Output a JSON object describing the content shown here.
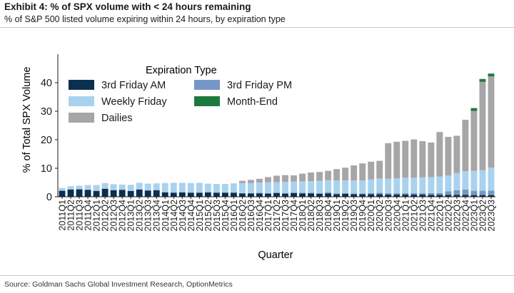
{
  "header": {
    "title": "Exhibit 4: % of SPX volume with < 24 hours remaining",
    "subtitle": "% of S&P 500 listed volume expiring within 24 hours, by expiration type"
  },
  "footer": {
    "source": "Source: Goldman Sachs Global Investment Research, OptionMetrics"
  },
  "chart_data": {
    "type": "bar",
    "stacked": true,
    "xlabel": "Quarter",
    "ylabel": "% of Total SPX Volume",
    "ylim": [
      0,
      50
    ],
    "yticks": [
      0,
      10,
      20,
      30,
      40
    ],
    "grid": false,
    "legend": {
      "title": "Expiration Type",
      "placement": "top-left"
    },
    "categories": [
      "2011Q1",
      "2011Q2",
      "2011Q3",
      "2011Q4",
      "2012Q1",
      "2012Q2",
      "2012Q3",
      "2012Q4",
      "2013Q1",
      "2013Q2",
      "2013Q3",
      "2013Q4",
      "2014Q1",
      "2014Q2",
      "2014Q3",
      "2014Q4",
      "2015Q1",
      "2015Q2",
      "2015Q3",
      "2015Q4",
      "2016Q1",
      "2016Q2",
      "2016Q3",
      "2016Q4",
      "2017Q1",
      "2017Q2",
      "2017Q3",
      "2017Q4",
      "2018Q1",
      "2018Q2",
      "2018Q3",
      "2018Q4",
      "2019Q1",
      "2019Q2",
      "2019Q3",
      "2019Q4",
      "2020Q1",
      "2020Q2",
      "2020Q3",
      "2020Q4",
      "2021Q1",
      "2021Q2",
      "2021Q3",
      "2021Q4",
      "2022Q1",
      "2022Q2",
      "2022Q3",
      "2022Q4",
      "2023Q1",
      "2023Q2",
      "2023Q3"
    ],
    "series": [
      {
        "name": "3rd Friday AM",
        "color": "#0b2f50",
        "values": [
          2.1,
          2.5,
          2.6,
          2.4,
          2.0,
          2.8,
          2.3,
          2.4,
          2.0,
          2.5,
          2.2,
          2.3,
          1.5,
          1.4,
          1.5,
          1.4,
          1.4,
          1.5,
          1.4,
          1.4,
          1.4,
          1.2,
          1.2,
          1.2,
          1.1,
          1.3,
          1.1,
          1.3,
          1.2,
          1.2,
          1.0,
          1.2,
          0.9,
          1.0,
          0.9,
          0.9,
          0.9,
          0.9,
          0.8,
          0.8,
          0.8,
          0.8,
          0.8,
          0.7,
          0.7,
          0.7,
          0.7,
          0.7,
          0.6,
          0.6,
          0.6
        ]
      },
      {
        "name": "3rd Friday PM",
        "color": "#7597c7",
        "values": [
          0.1,
          0.1,
          0.1,
          0.1,
          0.1,
          0.1,
          0.1,
          0.1,
          0.1,
          0.1,
          0.1,
          0.1,
          0.1,
          0.1,
          0.1,
          0.1,
          0.1,
          0.1,
          0.1,
          0.1,
          0.1,
          0.1,
          0.1,
          0.2,
          0.2,
          0.2,
          0.2,
          0.2,
          0.2,
          0.2,
          0.3,
          0.3,
          0.3,
          0.3,
          0.3,
          0.3,
          0.4,
          0.5,
          0.5,
          0.5,
          0.5,
          0.5,
          0.5,
          0.6,
          0.6,
          1.2,
          1.6,
          1.8,
          1.5,
          1.5,
          1.6
        ]
      },
      {
        "name": "Weekly Friday",
        "color": "#a9d2ef",
        "values": [
          0.9,
          1.1,
          1.2,
          1.6,
          2.0,
          1.9,
          2.0,
          1.8,
          2.1,
          2.3,
          2.3,
          2.3,
          3.2,
          3.4,
          3.3,
          3.3,
          3.4,
          3.0,
          3.0,
          3.0,
          3.2,
          3.5,
          3.5,
          3.6,
          3.8,
          3.6,
          3.9,
          3.8,
          4.0,
          4.1,
          4.3,
          4.3,
          4.5,
          4.4,
          4.5,
          4.5,
          4.8,
          5.0,
          5.0,
          5.2,
          5.4,
          5.4,
          5.5,
          5.6,
          5.8,
          5.6,
          6.0,
          6.5,
          7.0,
          7.2,
          8.0
        ]
      },
      {
        "name": "Dailies",
        "color": "#a6a6a6",
        "values": [
          0,
          0,
          0,
          0,
          0,
          0,
          0,
          0,
          0,
          0,
          0,
          0,
          0,
          0,
          0,
          0,
          0,
          0,
          0,
          0,
          0,
          0.8,
          1.1,
          1.3,
          1.8,
          2.3,
          2.4,
          2.2,
          2.7,
          3.0,
          3.1,
          3.3,
          4.0,
          4.5,
          5.3,
          6.0,
          6.2,
          6.2,
          12.5,
          12.8,
          12.9,
          13.4,
          12.7,
          12.1,
          15.6,
          13.5,
          13.1,
          18.0,
          21.0,
          31.0,
          32.0
        ]
      },
      {
        "name": "Month-End",
        "color": "#1d7a3e",
        "values": [
          0,
          0,
          0,
          0,
          0,
          0,
          0,
          0,
          0,
          0,
          0,
          0,
          0,
          0,
          0,
          0,
          0,
          0,
          0,
          0,
          0,
          0,
          0,
          0,
          0,
          0,
          0,
          0,
          0,
          0,
          0,
          0,
          0,
          0,
          0,
          0,
          0,
          0,
          0,
          0,
          0,
          0,
          0,
          0,
          0,
          0,
          0,
          0,
          1.0,
          1.0,
          1.0
        ]
      }
    ]
  }
}
